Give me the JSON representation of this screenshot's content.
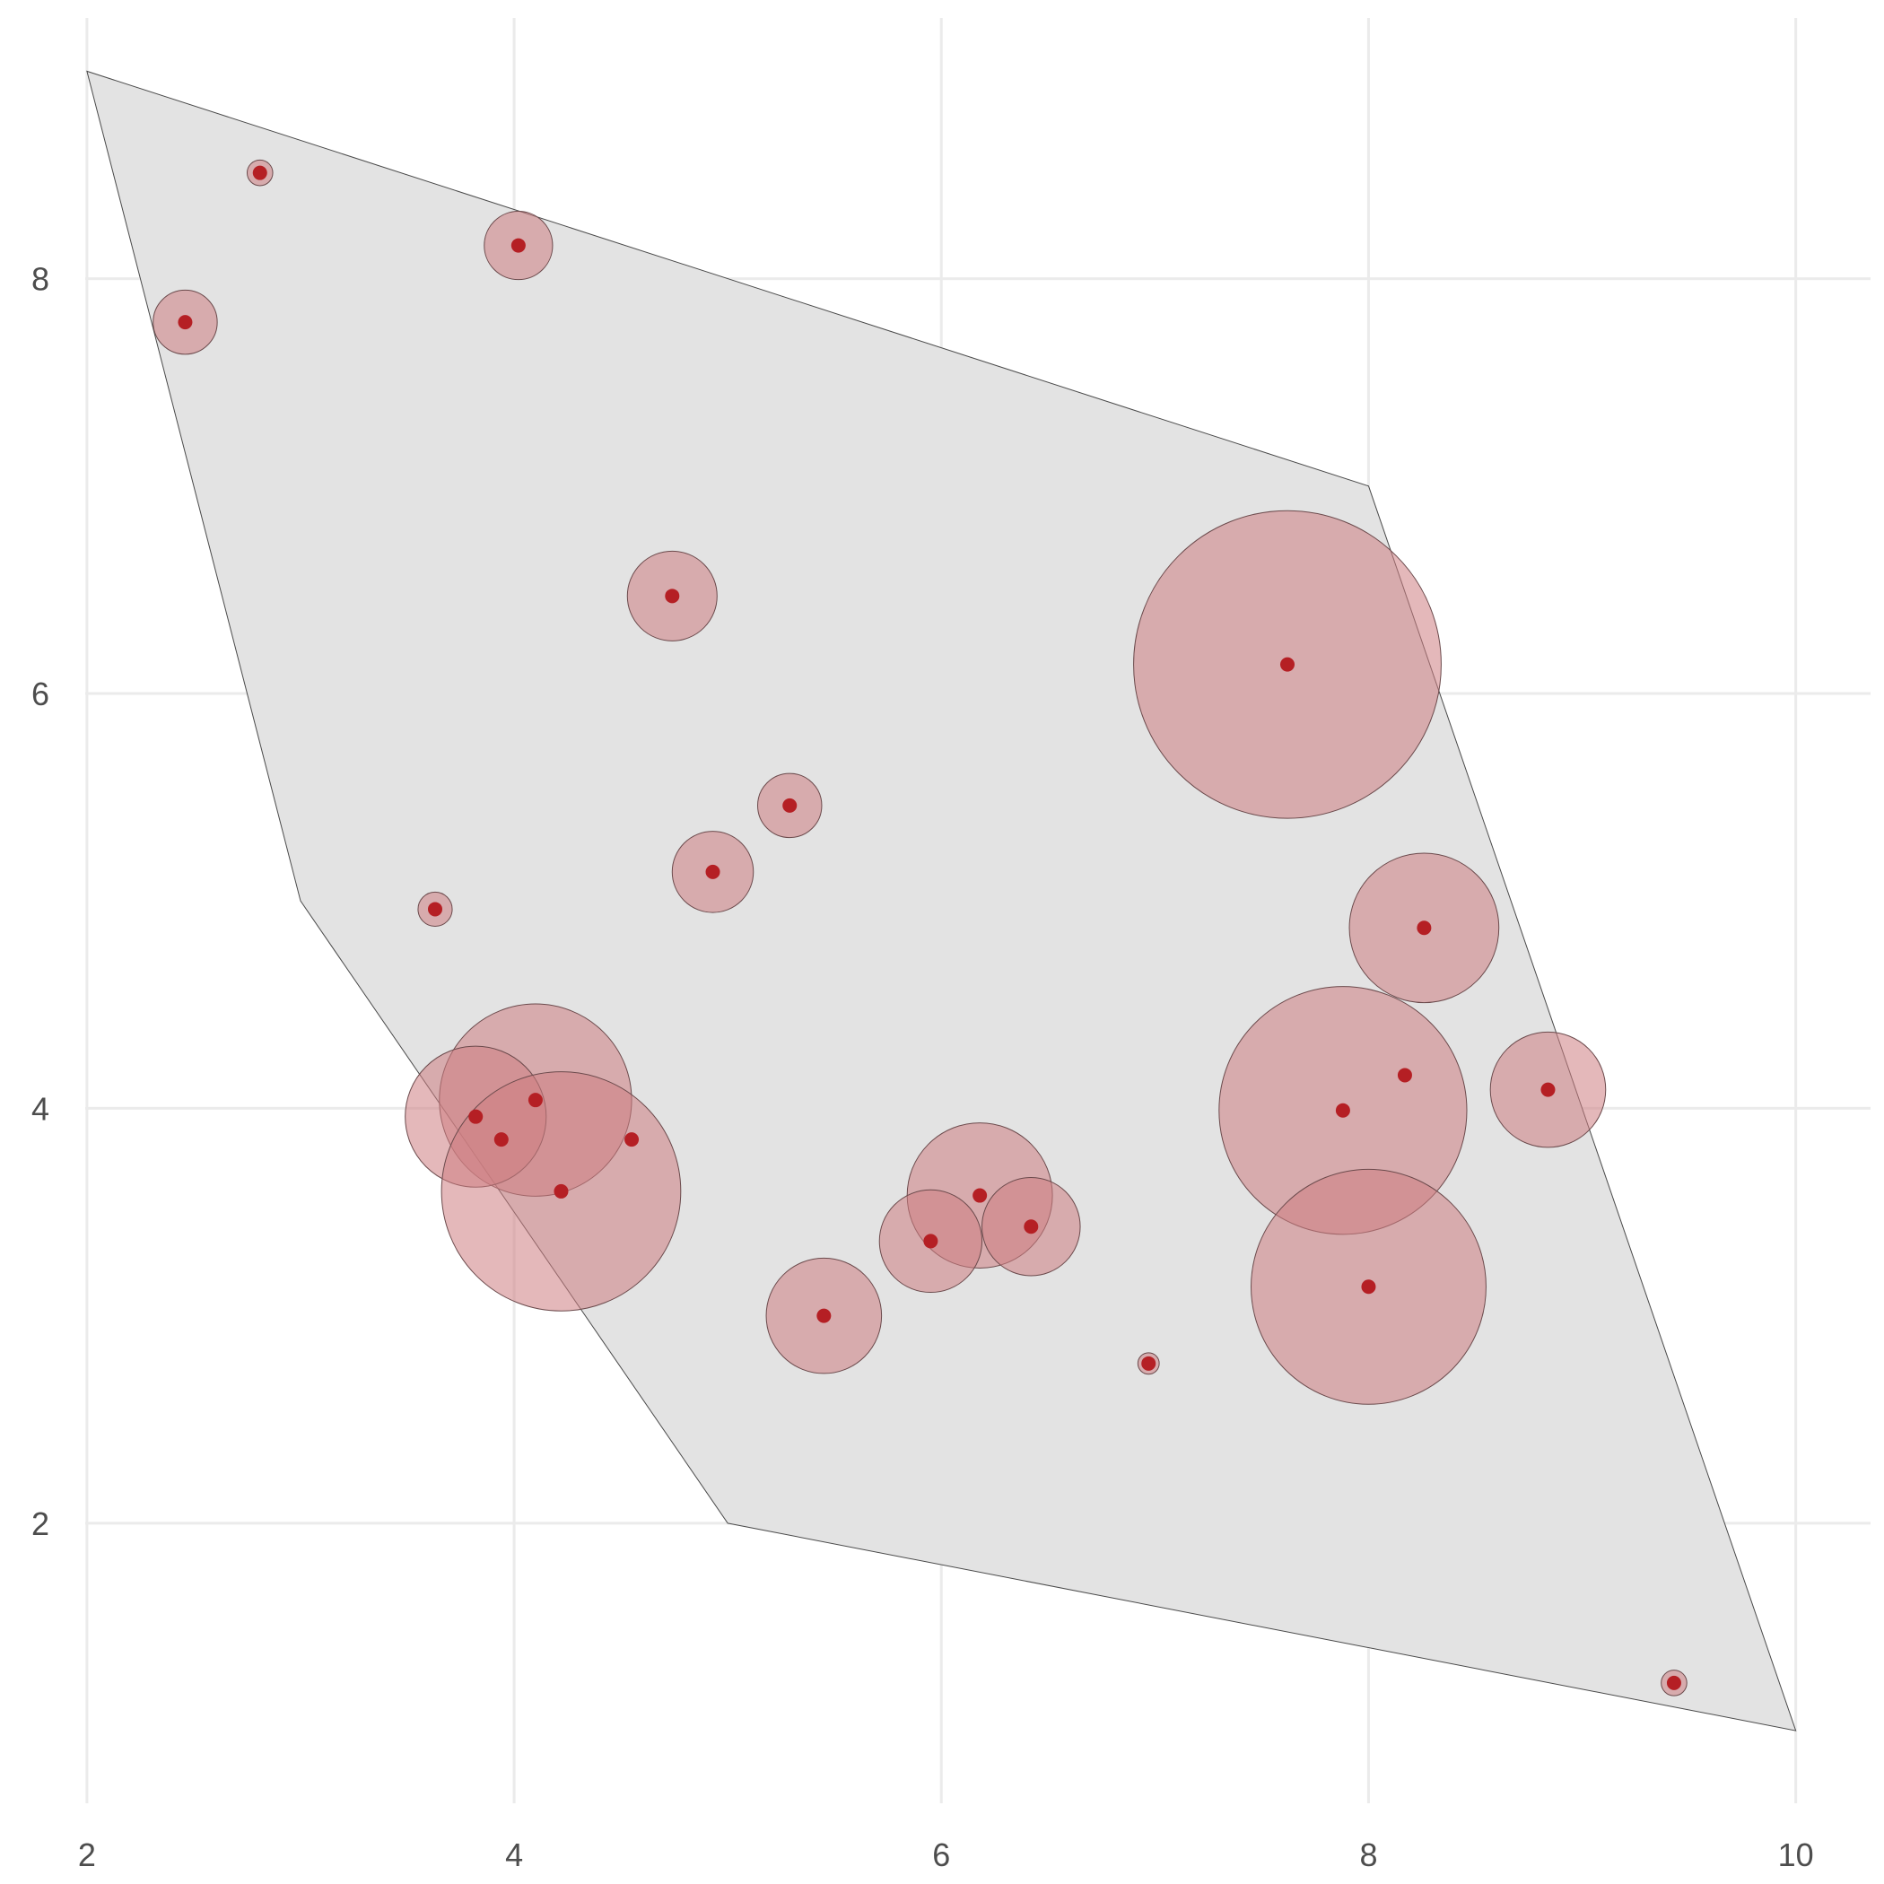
{
  "chart_data": {
    "type": "scatter",
    "title": "",
    "xlabel": "",
    "ylabel": "",
    "xlim": [
      1.95,
      10.35
    ],
    "ylim": [
      0.65,
      9.3
    ],
    "x_ticks": [
      2,
      4,
      6,
      8,
      10
    ],
    "y_ticks": [
      2,
      4,
      6,
      8
    ],
    "grid": true,
    "colors": {
      "hull_fill": "#e3e3e3",
      "hull_stroke": "#4a4a4a",
      "bubble_fill": "#cd7d82",
      "point": "#b51f24",
      "grid": "#ebebeb"
    },
    "hull": [
      {
        "x": 2,
        "y": 9
      },
      {
        "x": 8,
        "y": 7
      },
      {
        "x": 10,
        "y": 1
      },
      {
        "x": 5,
        "y": 2
      },
      {
        "x": 3,
        "y": 5
      }
    ],
    "points": [
      {
        "x": 2.81,
        "y": 8.51,
        "r": 0.06
      },
      {
        "x": 2.46,
        "y": 7.79,
        "r": 0.15
      },
      {
        "x": 4.02,
        "y": 8.16,
        "r": 0.16
      },
      {
        "x": 4.74,
        "y": 6.47,
        "r": 0.21
      },
      {
        "x": 7.62,
        "y": 6.14,
        "r": 0.72
      },
      {
        "x": 5.29,
        "y": 5.46,
        "r": 0.15
      },
      {
        "x": 4.93,
        "y": 5.14,
        "r": 0.19
      },
      {
        "x": 3.63,
        "y": 4.96,
        "r": 0.08
      },
      {
        "x": 8.26,
        "y": 4.87,
        "r": 0.35
      },
      {
        "x": 4.1,
        "y": 4.04,
        "r": 0.45
      },
      {
        "x": 3.82,
        "y": 3.96,
        "r": 0.33
      },
      {
        "x": 3.94,
        "y": 3.85,
        "r": 0
      },
      {
        "x": 4.55,
        "y": 3.85,
        "r": 0
      },
      {
        "x": 4.22,
        "y": 3.6,
        "r": 0.56
      },
      {
        "x": 7.88,
        "y": 3.99,
        "r": 0.58
      },
      {
        "x": 8.17,
        "y": 4.16,
        "r": 0
      },
      {
        "x": 8.84,
        "y": 4.09,
        "r": 0.27
      },
      {
        "x": 6.18,
        "y": 3.58,
        "r": 0.34
      },
      {
        "x": 5.95,
        "y": 3.36,
        "r": 0.24
      },
      {
        "x": 6.42,
        "y": 3.43,
        "r": 0.23
      },
      {
        "x": 5.45,
        "y": 3.0,
        "r": 0.27
      },
      {
        "x": 8.0,
        "y": 3.14,
        "r": 0.55
      },
      {
        "x": 6.97,
        "y": 2.77,
        "r": 0.05
      },
      {
        "x": 9.43,
        "y": 1.23,
        "r": 0.06
      }
    ]
  }
}
